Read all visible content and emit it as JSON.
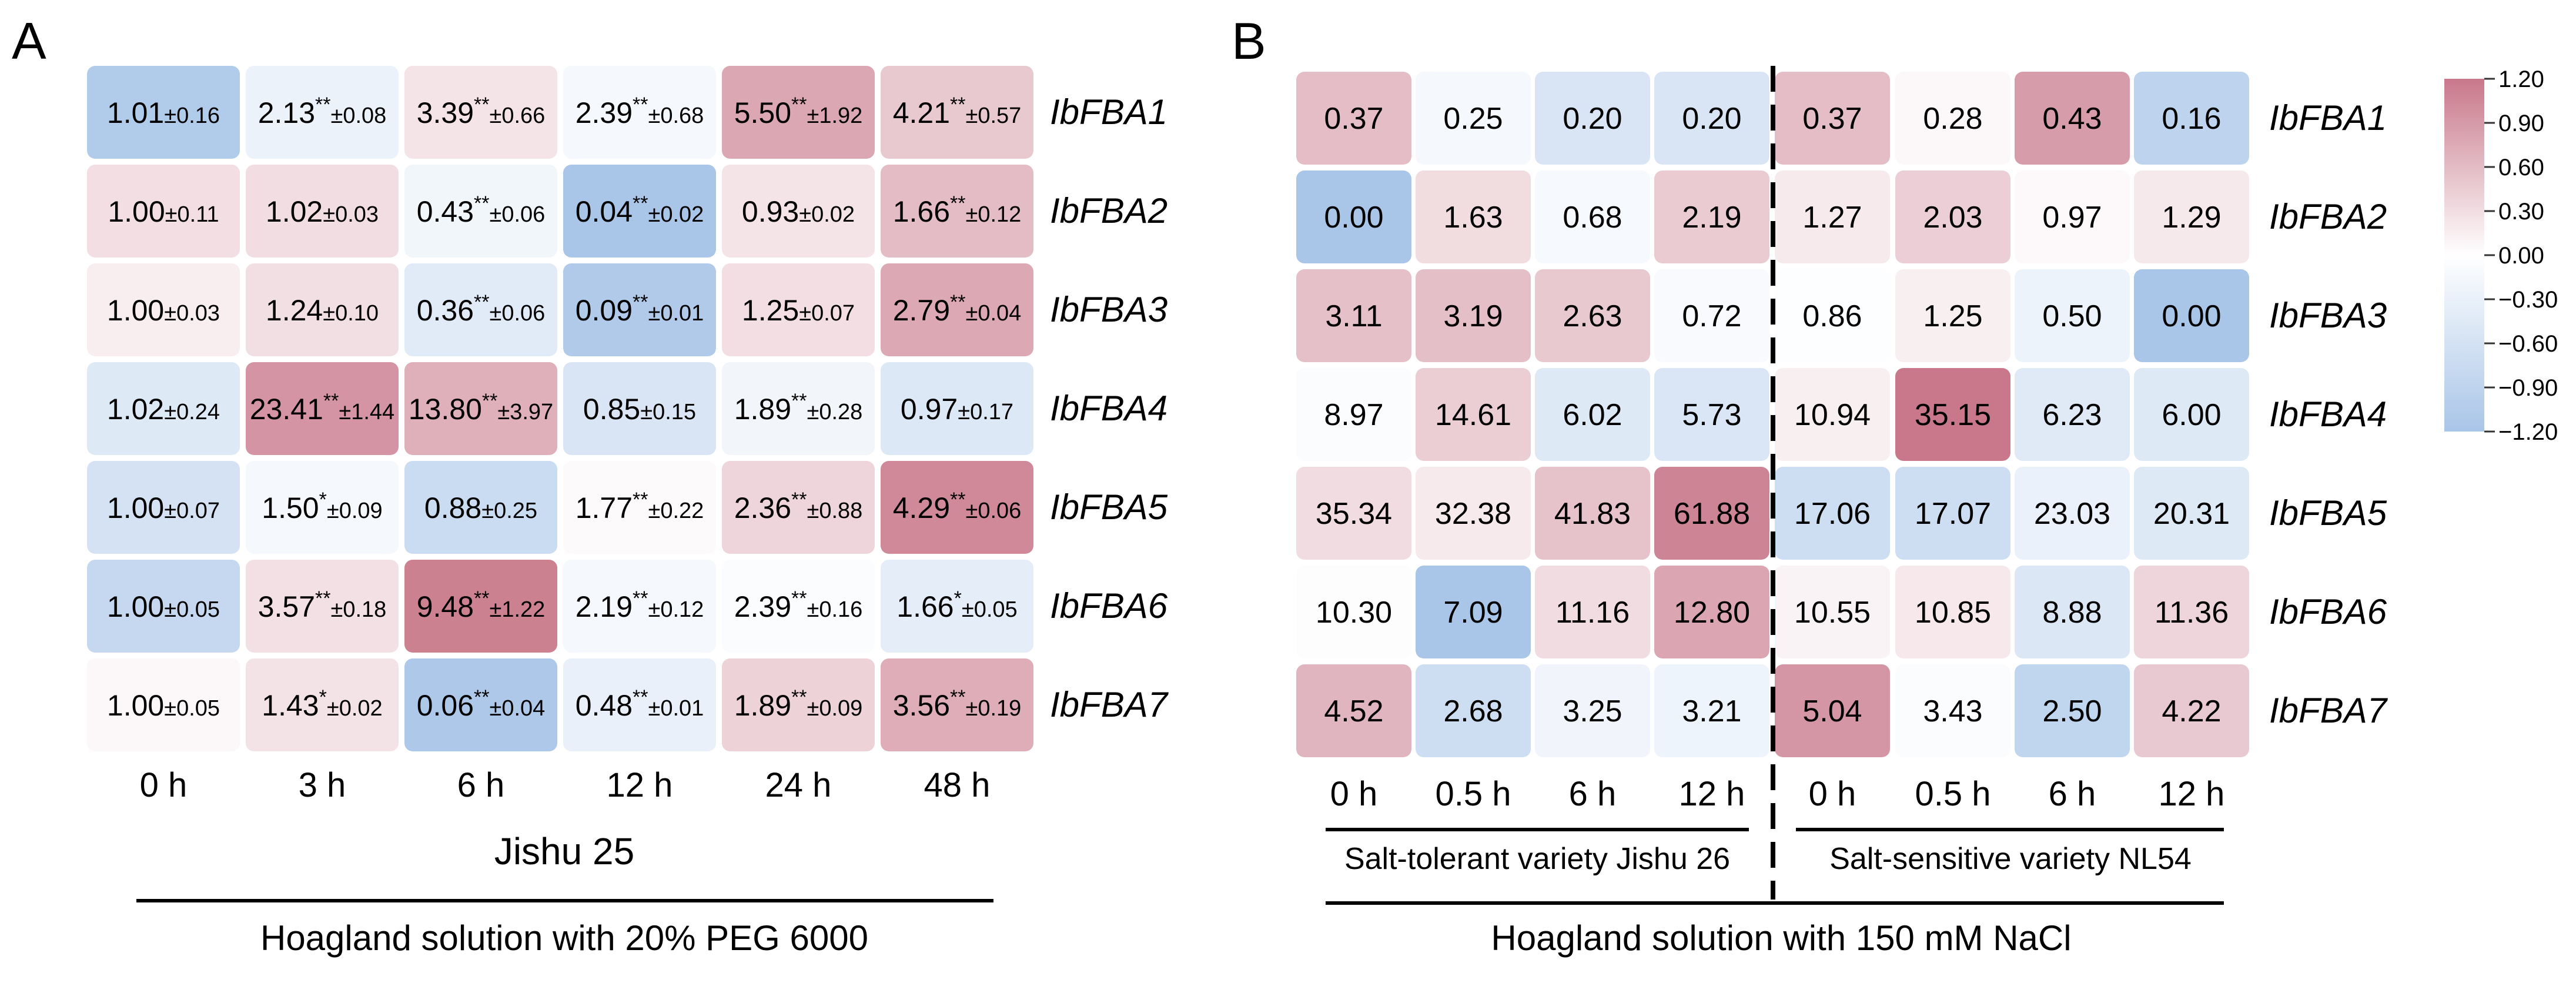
{
  "panels": [
    {
      "panel_label": "A",
      "chart_data": {
        "type": "heatmap",
        "columns": [
          "0 h",
          "3 h",
          "6 h",
          "12 h",
          "24 h",
          "48 h"
        ],
        "rows": [
          "IbFBA1",
          "IbFBA2",
          "IbFBA3",
          "IbFBA4",
          "IbFBA5",
          "IbFBA6",
          "IbFBA7"
        ],
        "cells": [
          [
            {
              "v": "1.01",
              "sig": "",
              "sd": "0.16"
            },
            {
              "v": "2.13",
              "sig": "**",
              "sd": "0.08"
            },
            {
              "v": "3.39",
              "sig": "**",
              "sd": "0.66"
            },
            {
              "v": "2.39",
              "sig": "**",
              "sd": "0.68"
            },
            {
              "v": "5.50",
              "sig": "**",
              "sd": "1.92"
            },
            {
              "v": "4.21",
              "sig": "**",
              "sd": "0.57"
            }
          ],
          [
            {
              "v": "1.00",
              "sig": "",
              "sd": "0.11"
            },
            {
              "v": "1.02",
              "sig": "",
              "sd": "0.03"
            },
            {
              "v": "0.43",
              "sig": "**",
              "sd": "0.06"
            },
            {
              "v": "0.04",
              "sig": "**",
              "sd": "0.02"
            },
            {
              "v": "0.93",
              "sig": "",
              "sd": "0.02"
            },
            {
              "v": "1.66",
              "sig": "**",
              "sd": "0.12"
            }
          ],
          [
            {
              "v": "1.00",
              "sig": "",
              "sd": "0.03"
            },
            {
              "v": "1.24",
              "sig": "",
              "sd": "0.10"
            },
            {
              "v": "0.36",
              "sig": "**",
              "sd": "0.06"
            },
            {
              "v": "0.09",
              "sig": "**",
              "sd": "0.01"
            },
            {
              "v": "1.25",
              "sig": "",
              "sd": "0.07"
            },
            {
              "v": "2.79",
              "sig": "**",
              "sd": "0.04"
            }
          ],
          [
            {
              "v": "1.02",
              "sig": "",
              "sd": "0.24"
            },
            {
              "v": "23.41",
              "sig": "**",
              "sd": "1.44"
            },
            {
              "v": "13.80",
              "sig": "**",
              "sd": "3.97"
            },
            {
              "v": "0.85",
              "sig": "",
              "sd": "0.15"
            },
            {
              "v": "1.89",
              "sig": "**",
              "sd": "0.28"
            },
            {
              "v": "0.97",
              "sig": "",
              "sd": "0.17"
            }
          ],
          [
            {
              "v": "1.00",
              "sig": "",
              "sd": "0.07"
            },
            {
              "v": "1.50",
              "sig": "*",
              "sd": "0.09"
            },
            {
              "v": "0.88",
              "sig": "",
              "sd": "0.25"
            },
            {
              "v": "1.77",
              "sig": "**",
              "sd": "0.22"
            },
            {
              "v": "2.36",
              "sig": "**",
              "sd": "0.88"
            },
            {
              "v": "4.29",
              "sig": "**",
              "sd": "0.06"
            }
          ],
          [
            {
              "v": "1.00",
              "sig": "",
              "sd": "0.05"
            },
            {
              "v": "3.57",
              "sig": "**",
              "sd": "0.18"
            },
            {
              "v": "9.48",
              "sig": "**",
              "sd": "1.22"
            },
            {
              "v": "2.19",
              "sig": "**",
              "sd": "0.12"
            },
            {
              "v": "2.39",
              "sig": "**",
              "sd": "0.16"
            },
            {
              "v": "1.66",
              "sig": "*",
              "sd": "0.05"
            }
          ],
          [
            {
              "v": "1.00",
              "sig": "",
              "sd": "0.05"
            },
            {
              "v": "1.43",
              "sig": "*",
              "sd": "0.02"
            },
            {
              "v": "0.06",
              "sig": "**",
              "sd": "0.04"
            },
            {
              "v": "0.48",
              "sig": "**",
              "sd": "0.01"
            },
            {
              "v": "1.89",
              "sig": "**",
              "sd": "0.09"
            },
            {
              "v": "3.56",
              "sig": "**",
              "sd": "0.19"
            }
          ]
        ],
        "group_label": "Jishu 25",
        "bottom_label": "Hoagland solution with 20% PEG 6000"
      }
    },
    {
      "panel_label": "B",
      "chart_data": {
        "type": "heatmap",
        "columns": [
          "0 h",
          "0.5 h",
          "6 h",
          "12 h",
          "0 h",
          "0.5 h",
          "6 h",
          "12 h"
        ],
        "rows": [
          "IbFBA1",
          "IbFBA2",
          "IbFBA3",
          "IbFBA4",
          "IbFBA5",
          "IbFBA6",
          "IbFBA7"
        ],
        "values": [
          [
            "0.37",
            "0.25",
            "0.20",
            "0.20",
            "0.37",
            "0.28",
            "0.43",
            "0.16"
          ],
          [
            "0.00",
            "1.63",
            "0.68",
            "2.19",
            "1.27",
            "2.03",
            "0.97",
            "1.29"
          ],
          [
            "3.11",
            "3.19",
            "2.63",
            "0.72",
            "0.86",
            "1.25",
            "0.50",
            "0.00"
          ],
          [
            "8.97",
            "14.61",
            "6.02",
            "5.73",
            "10.94",
            "35.15",
            "6.23",
            "6.00"
          ],
          [
            "35.34",
            "32.38",
            "41.83",
            "61.88",
            "17.06",
            "17.07",
            "23.03",
            "20.31"
          ],
          [
            "10.30",
            "7.09",
            "11.16",
            "12.80",
            "10.55",
            "10.85",
            "8.88",
            "11.36"
          ],
          [
            "4.52",
            "2.68",
            "3.25",
            "3.21",
            "5.04",
            "3.43",
            "2.50",
            "4.22"
          ]
        ],
        "groups": [
          {
            "label": "Salt-tolerant variety Jishu 26",
            "columns": [
              0,
              1,
              2,
              3
            ]
          },
          {
            "label": "Salt-sensitive variety NL54",
            "columns": [
              4,
              5,
              6,
              7
            ]
          }
        ],
        "bottom_label": "Hoagland solution with 150 mM NaCl",
        "colorbar": {
          "ticks": [
            "1.20",
            "0.90",
            "0.60",
            "0.30",
            "0.00",
            "−0.30",
            "−0.60",
            "−0.90",
            "−1.20"
          ],
          "max": 1.2,
          "min": -1.2,
          "color_high": "#c8788a",
          "color_mid": "#ffffff",
          "color_low": "#a9c5e8"
        }
      }
    }
  ]
}
